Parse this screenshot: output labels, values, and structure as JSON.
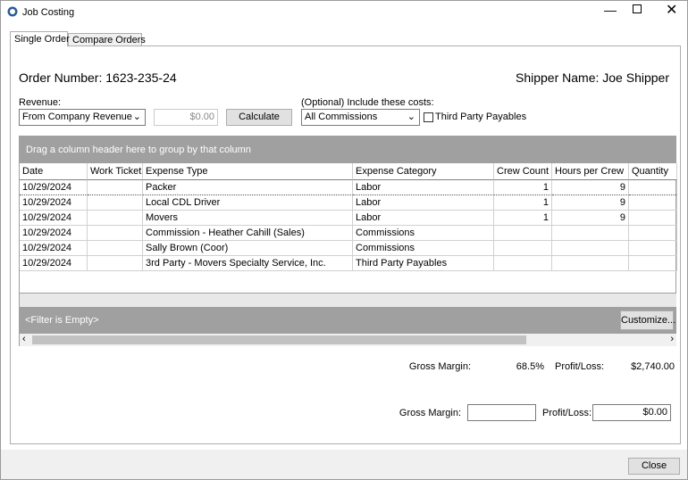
{
  "window": {
    "title": "Job Costing"
  },
  "tabs": [
    "Single Order",
    "Compare Orders"
  ],
  "order_number": "Order Number: 1623-235-24",
  "shipper_name": "Shipper Name: Joe Shipper",
  "revenue": {
    "label": "Revenue:",
    "dropdown": "From Company Revenue",
    "amount": "$0.00",
    "button": "Calculate"
  },
  "costs": {
    "label": "(Optional) Include these costs:",
    "dropdown": "All Commissions",
    "checkbox": "Third Party Payables"
  },
  "grid": {
    "group_hint": "Drag a column header here to group by that column",
    "columns": [
      "Date",
      "Work Ticket",
      "Expense Type",
      "Expense Category",
      "Crew Count",
      "Hours per Crew",
      "Quantity"
    ],
    "rows": [
      [
        "10/29/2024",
        null,
        "Packer",
        "Labor",
        1,
        9,
        null
      ],
      [
        "10/29/2024",
        null,
        "Local CDL Driver",
        "Labor",
        1,
        9,
        null
      ],
      [
        "10/29/2024",
        null,
        "Movers",
        "Labor",
        1,
        9,
        null
      ],
      [
        "10/29/2024",
        null,
        "Commission - Heather Cahill (Sales)",
        "Commissions",
        null,
        null,
        null
      ],
      [
        "10/29/2024",
        null,
        "Sally Brown (Coor)",
        "Commissions",
        null,
        null,
        null
      ],
      [
        "10/29/2024",
        null,
        "3rd Party - Movers Specialty Service, Inc.",
        "Third Party Payables",
        null,
        null,
        null
      ]
    ],
    "filter": "<Filter is Empty>",
    "customize": "Customize..."
  },
  "summary": {
    "gross_margin_label": "Gross Margin:",
    "gross_margin": "68.5%",
    "profit_label": "Profit/Loss:",
    "profit": "$2,740.00"
  },
  "summary_input": {
    "gross_margin_label": "Gross Margin:",
    "profit_label": "Profit/Loss:",
    "profit": "$0.00"
  },
  "close": "Close"
}
